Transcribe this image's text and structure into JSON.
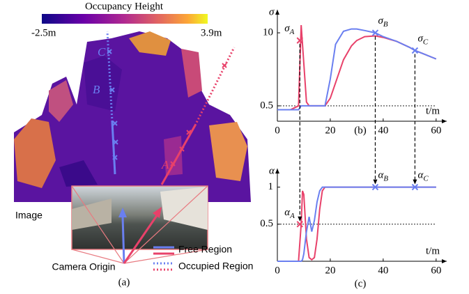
{
  "panel_a": {
    "colorbar_title": "Occupancy Height",
    "colorbar_min": "-2.5m",
    "colorbar_max": "3.9m",
    "points": [
      "A",
      "B",
      "C"
    ],
    "image_label": "Image",
    "origin_label": "Camera Origin",
    "legend": [
      "Free Region",
      "Occupied Region"
    ],
    "caption": "(a)"
  },
  "chart_data": [
    {
      "type": "line",
      "ylabel": "σ",
      "xlabel": "t/m",
      "caption": "(b)",
      "xlim": [
        0,
        64
      ],
      "ylim": [
        -1.5,
        13
      ],
      "xticks": [
        0,
        20,
        40,
        60
      ],
      "yticks": [
        0.5,
        10
      ],
      "hline": 0.5,
      "x": [
        0,
        5,
        8,
        9,
        10,
        11,
        12,
        14,
        16,
        18,
        20,
        22,
        25,
        28,
        30,
        33,
        37,
        40,
        45,
        50,
        52,
        55,
        60
      ],
      "series": [
        {
          "name": "Free Region",
          "color": "#e8416a",
          "values": [
            0,
            0,
            0.5,
            11,
            6,
            1,
            0.5,
            0.5,
            0.5,
            0.5,
            1.5,
            3.5,
            6.5,
            8.3,
            9,
            9.5,
            9.6,
            9.4,
            8.9,
            8.1,
            7.7,
            7.3,
            6.6
          ]
        },
        {
          "name": "Occupied Region",
          "color": "#6a7ff0",
          "values": [
            0,
            0,
            0,
            0.5,
            0.5,
            0.5,
            0.5,
            0.5,
            0.5,
            0.5,
            4,
            8.5,
            10.2,
            10.5,
            10.5,
            10.3,
            10,
            9.5,
            8.9,
            8.1,
            7.7,
            7.3,
            6.6
          ]
        }
      ],
      "annotations": [
        {
          "label": "σ",
          "sub": "A",
          "x": 8.5,
          "y": 9
        },
        {
          "label": "σ",
          "sub": "B",
          "x": 37,
          "y": 10
        },
        {
          "label": "σ",
          "sub": "C",
          "x": 52,
          "y": 7.7
        }
      ]
    },
    {
      "type": "line",
      "ylabel": "α",
      "xlabel": "t/m",
      "caption": "(c)",
      "xlim": [
        0,
        64
      ],
      "ylim": [
        0,
        1.25
      ],
      "xticks": [
        0,
        20,
        40,
        60
      ],
      "yticks": [
        0.5,
        1
      ],
      "hline": 0.5,
      "x": [
        0,
        5,
        8,
        9,
        9.5,
        10,
        11,
        12,
        13,
        14,
        15,
        16,
        17,
        18,
        19,
        20,
        30,
        40,
        50,
        60
      ],
      "series": [
        {
          "name": "Free Region",
          "color": "#e8416a",
          "values": [
            0,
            0,
            0,
            0.5,
            0.95,
            0.9,
            0.3,
            0.05,
            0.02,
            0.05,
            0.3,
            0.7,
            0.95,
            1,
            1,
            1,
            1,
            1,
            1,
            1
          ]
        },
        {
          "name": "Occupied Region",
          "color": "#6a7ff0",
          "values": [
            0,
            0,
            0,
            0,
            0.02,
            0.1,
            0.4,
            0.6,
            0.4,
            0.55,
            0.8,
            0.95,
            1,
            1,
            1,
            1,
            1,
            1,
            1,
            1
          ]
        }
      ],
      "annotations": [
        {
          "label": "α",
          "sub": "A",
          "x": 8.5,
          "y": 0.5
        },
        {
          "label": "α",
          "sub": "B",
          "x": 37,
          "y": 1
        },
        {
          "label": "α",
          "sub": "C",
          "x": 52,
          "y": 1
        }
      ]
    }
  ]
}
